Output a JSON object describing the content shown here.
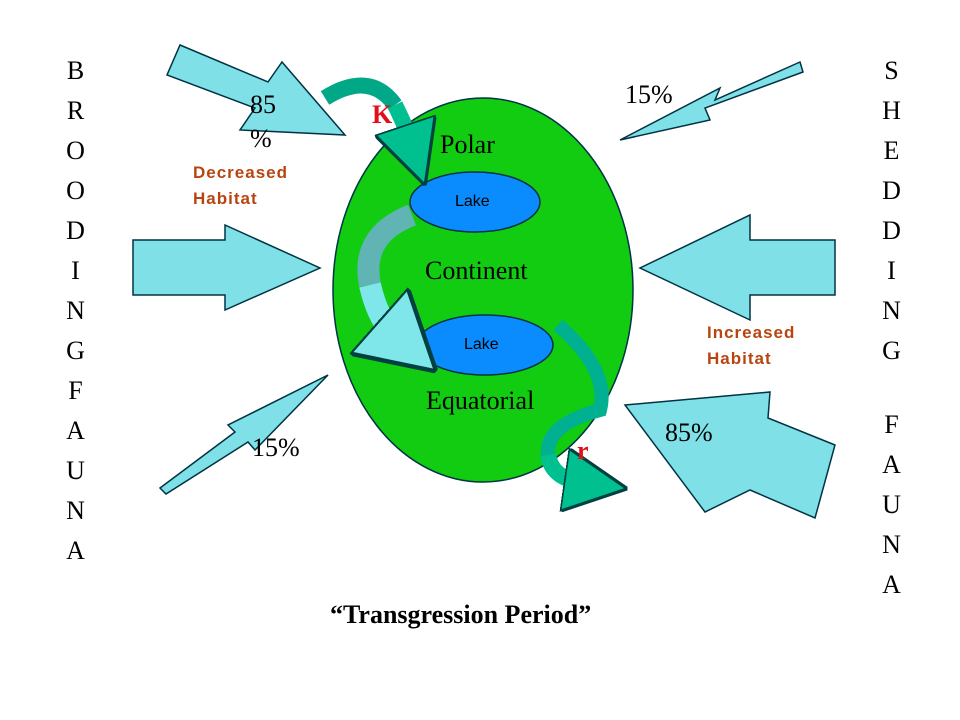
{
  "left_label": "BROODINGFAUNA",
  "right_label": [
    "SHEDDING",
    "FAUNA"
  ],
  "continent": {
    "top": "Polar",
    "middle": "Continent",
    "bottom": "Equatorial",
    "lakes": [
      "Lake",
      "Lake"
    ]
  },
  "arrows": {
    "top_left": "85 %",
    "top_right": "15%",
    "bottom_left": "15%",
    "bottom_right": "85%"
  },
  "strategies": {
    "k": "K",
    "r": "r"
  },
  "habitats": {
    "left": "Decreased Habitat",
    "right": "Increased Habitat"
  },
  "caption": "“Transgression Period”"
}
